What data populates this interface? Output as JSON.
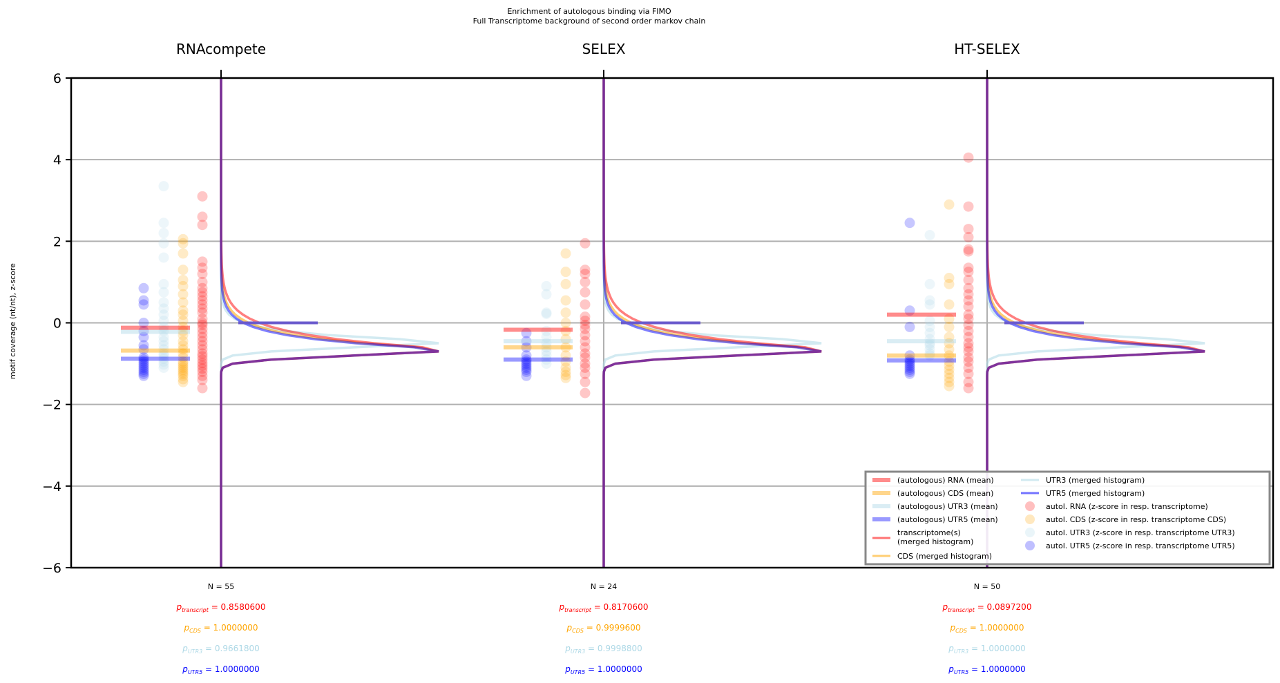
{
  "chart_data": {
    "type": "scatter",
    "title": "Enrichment of autologous binding via FIMO",
    "subtitle": "Full Transcriptome background of second order markov chain",
    "ylabel": "motif coverage (nt/nt), z-score",
    "ylim": [
      -6,
      6
    ],
    "yticks": [
      -6,
      -4,
      -2,
      0,
      2,
      4,
      6
    ],
    "ytick_labels": [
      "−6",
      "−4",
      "−2",
      "0",
      "2",
      "4",
      "6"
    ],
    "grid": true,
    "legend_position": "bottom-right",
    "colors": {
      "rna": "#ff0000",
      "cds": "#ffa500",
      "utr3": "#add8e6",
      "utr5": "#0000ff",
      "mean_bar": "#6a5acd"
    },
    "legend": [
      "(autologous) RNA (mean)",
      "(autologous) CDS (mean)",
      "(autologous) UTR3 (mean)",
      "(autologous) UTR5 (mean)",
      "transcriptome(s)\n(merged histogram)",
      "CDS (merged histogram)",
      "UTR3 (merged histogram)",
      "UTR5 (merged histogram)",
      "autol. RNA (z-score in resp. transcriptome)",
      "autol. CDS (z-score in resp. transcriptome CDS)",
      "autol. UTR3 (z-score in resp. transcriptome UTR3)",
      "autol. UTR5 (z-score in resp. transcriptome UTR5)"
    ],
    "panels": [
      {
        "name": "RNAcompete",
        "n_label": "N = 55",
        "p": {
          "transcript": "0.8580600",
          "cds": "1.0000000",
          "utr3": "0.9661800",
          "utr5": "1.0000000"
        },
        "means": {
          "rna": -0.12,
          "cds": -0.68,
          "utr3": -0.22,
          "utr5": -0.88
        },
        "median_bar": 0.0,
        "points": {
          "rna": [
            3.1,
            2.6,
            2.4,
            1.5,
            1.35,
            1.2,
            1.0,
            0.85,
            0.75,
            0.65,
            0.55,
            0.45,
            0.35,
            0.25,
            0.1,
            0.0,
            -0.05,
            -0.15,
            -0.25,
            -0.35,
            -0.45,
            -0.55,
            -0.65,
            -0.75,
            -0.82,
            -0.9,
            -0.98,
            -1.05,
            -1.12,
            -1.2,
            -1.3,
            -1.4,
            -1.6
          ],
          "cds": [
            2.05,
            1.95,
            1.7,
            1.3,
            1.05,
            0.9,
            0.7,
            0.5,
            0.3,
            0.2,
            0.05,
            -0.1,
            -0.2,
            -0.3,
            -0.45,
            -0.55,
            -0.65,
            -0.75,
            -0.85,
            -0.95,
            -1.0,
            -1.05,
            -1.1,
            -1.15,
            -1.2,
            -1.25,
            -1.3,
            -1.38,
            -1.45
          ],
          "utr3": [
            3.35,
            2.45,
            2.2,
            1.95,
            1.6,
            0.95,
            0.75,
            0.5,
            0.35,
            0.2,
            0.05,
            -0.1,
            -0.2,
            -0.35,
            -0.45,
            -0.55,
            -0.65,
            -0.75,
            -0.8,
            -0.88,
            -0.95,
            -1.02,
            -1.1
          ],
          "utr5": [
            0.85,
            0.55,
            0.45,
            0.0,
            -0.2,
            -0.35,
            -0.55,
            -0.65,
            -0.85,
            -0.9,
            -0.95,
            -1.0,
            -1.05,
            -1.1,
            -1.15,
            -1.2,
            -1.25,
            -1.3
          ]
        }
      },
      {
        "name": "SELEX",
        "n_label": "N = 24",
        "p": {
          "transcript": "0.8170600",
          "cds": "0.9999600",
          "utr3": "0.9998800",
          "utr5": "1.0000000"
        },
        "means": {
          "rna": -0.17,
          "cds": -0.6,
          "utr3": -0.45,
          "utr5": -0.9
        },
        "median_bar": 0.0,
        "points": {
          "rna": [
            1.95,
            1.3,
            1.2,
            1.0,
            0.75,
            0.45,
            0.15,
            0.05,
            -0.05,
            -0.15,
            -0.3,
            -0.45,
            -0.6,
            -0.75,
            -0.85,
            -1.0,
            -1.1,
            -1.25,
            -1.45,
            -1.72
          ],
          "cds": [
            1.7,
            1.25,
            0.95,
            0.55,
            0.25,
            0.0,
            -0.2,
            -0.4,
            -0.6,
            -0.8,
            -0.95,
            -1.1,
            -1.2,
            -1.28,
            -1.35
          ],
          "utr3": [
            0.9,
            0.7,
            0.25,
            0.22,
            -0.2,
            -0.35,
            -0.5,
            -0.6,
            -0.7,
            -0.8,
            -0.9,
            -1.0
          ],
          "utr5": [
            -0.25,
            -0.45,
            -0.6,
            -0.8,
            -0.9,
            -0.95,
            -1.0,
            -1.05,
            -1.1,
            -1.15,
            -1.2,
            -1.3
          ]
        }
      },
      {
        "name": "HT-SELEX",
        "n_label": "N = 50",
        "p": {
          "transcript": "0.0897200",
          "cds": "1.0000000",
          "utr3": "1.0000000",
          "utr5": "1.0000000"
        },
        "means": {
          "rna": 0.2,
          "cds": -0.8,
          "utr3": -0.45,
          "utr5": -0.92
        },
        "median_bar": 0.0,
        "points": {
          "rna": [
            4.05,
            2.85,
            2.3,
            2.1,
            1.8,
            1.75,
            1.35,
            1.25,
            1.05,
            0.85,
            0.7,
            0.55,
            0.4,
            0.2,
            0.1,
            -0.05,
            -0.2,
            -0.35,
            -0.5,
            -0.6,
            -0.7,
            -0.85,
            -0.95,
            -1.1,
            -1.25,
            -1.45,
            -1.6
          ],
          "cds": [
            2.9,
            1.1,
            0.95,
            0.45,
            0.1,
            -0.1,
            -0.35,
            -0.5,
            -0.65,
            -0.8,
            -0.95,
            -1.05,
            -1.15,
            -1.25,
            -1.35,
            -1.45,
            -1.55
          ],
          "utr3": [
            2.15,
            0.95,
            0.55,
            0.45,
            0.05,
            -0.1,
            -0.25,
            -0.4,
            -0.5,
            -0.55,
            -0.65,
            -0.75,
            -0.8
          ],
          "utr5": [
            2.45,
            0.3,
            -0.1,
            -0.8,
            -0.9,
            -0.95,
            -1.0,
            -1.05,
            -1.1,
            -1.15,
            -1.2,
            -1.25
          ]
        }
      }
    ]
  }
}
